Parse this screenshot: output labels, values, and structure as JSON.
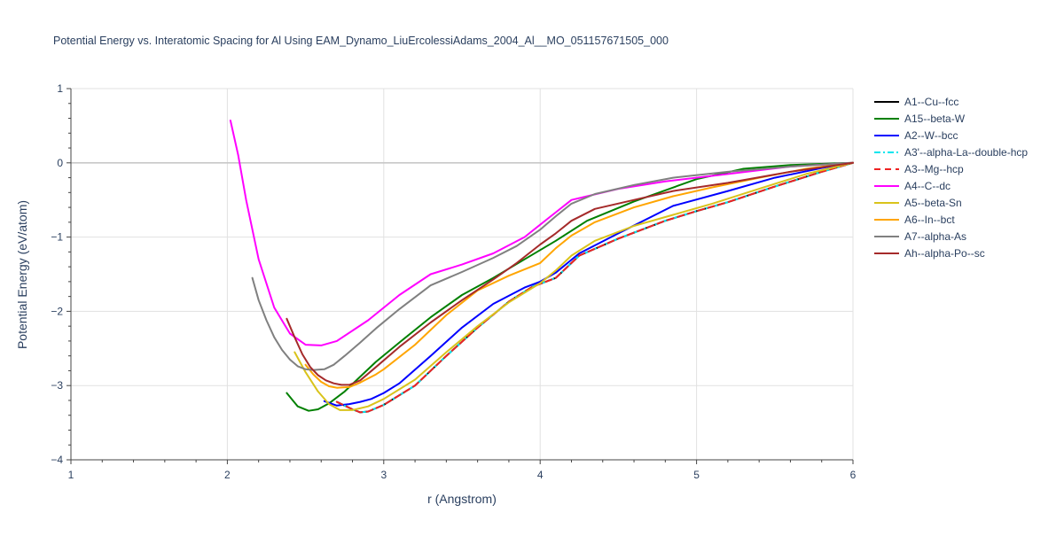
{
  "chart_data": {
    "type": "line",
    "title": "Potential Energy vs. Interatomic Spacing for Al Using EAM_Dynamo_LiuErcolessiAdams_2004_Al__MO_051157671505_000",
    "xlabel": "r (Angstrom)",
    "ylabel": "Potential Energy (eV/atom)",
    "xlim": [
      1,
      6
    ],
    "ylim": [
      -4,
      1
    ],
    "x_ticks": [
      "1",
      "2",
      "3",
      "4",
      "5",
      "6"
    ],
    "y_ticks": [
      "1",
      "0",
      "−1",
      "−2",
      "−3",
      "−4"
    ],
    "grid": true,
    "legend_position": "right",
    "series": [
      {
        "name": "A1--Cu--fcc",
        "color": "#000000",
        "dash": "solid",
        "x": [
          2.7,
          2.8,
          2.85,
          2.9,
          3.0,
          3.2,
          3.4,
          3.6,
          3.8,
          3.95,
          4.1,
          4.25,
          4.5,
          4.8,
          5.0,
          5.2,
          5.5,
          5.8,
          6.0
        ],
        "y": [
          -3.22,
          -3.32,
          -3.36,
          -3.35,
          -3.26,
          -3.0,
          -2.6,
          -2.22,
          -1.87,
          -1.67,
          -1.55,
          -1.25,
          -1.02,
          -0.78,
          -0.65,
          -0.53,
          -0.32,
          -0.12,
          0.0
        ]
      },
      {
        "name": "A15--beta-W",
        "color": "#008000",
        "dash": "solid",
        "x": [
          2.38,
          2.45,
          2.52,
          2.58,
          2.65,
          2.75,
          2.85,
          2.95,
          3.1,
          3.3,
          3.5,
          3.7,
          3.9,
          4.1,
          4.3,
          4.6,
          5.0,
          5.3,
          5.6,
          6.0
        ],
        "y": [
          -3.1,
          -3.28,
          -3.34,
          -3.32,
          -3.24,
          -3.08,
          -2.88,
          -2.68,
          -2.42,
          -2.08,
          -1.78,
          -1.55,
          -1.3,
          -1.05,
          -0.78,
          -0.52,
          -0.22,
          -0.08,
          -0.03,
          0.0
        ]
      },
      {
        "name": "A2--W--bcc",
        "color": "#0000ff",
        "dash": "solid",
        "x": [
          2.62,
          2.7,
          2.78,
          2.85,
          2.92,
          3.0,
          3.1,
          3.3,
          3.5,
          3.7,
          3.9,
          4.0,
          4.1,
          4.25,
          4.5,
          4.85,
          5.2,
          5.5,
          5.8,
          6.0
        ],
        "y": [
          -3.21,
          -3.27,
          -3.25,
          -3.22,
          -3.18,
          -3.1,
          -2.97,
          -2.6,
          -2.22,
          -1.9,
          -1.68,
          -1.6,
          -1.48,
          -1.22,
          -0.95,
          -0.58,
          -0.38,
          -0.2,
          -0.07,
          0.0
        ]
      },
      {
        "name": "A3'--alpha-La--double-hcp",
        "color": "#00e5ee",
        "dash": "dashdot",
        "x": [
          2.7,
          2.8,
          2.85,
          2.9,
          3.0,
          3.2,
          3.4,
          3.6,
          3.8,
          3.95,
          4.1,
          4.25,
          4.5,
          4.8,
          5.0,
          5.2,
          5.5,
          5.8,
          6.0
        ],
        "y": [
          -3.22,
          -3.32,
          -3.36,
          -3.35,
          -3.26,
          -3.0,
          -2.6,
          -2.22,
          -1.87,
          -1.67,
          -1.55,
          -1.25,
          -1.02,
          -0.78,
          -0.65,
          -0.53,
          -0.32,
          -0.12,
          0.0
        ]
      },
      {
        "name": "A3--Mg--hcp",
        "color": "#ee2222",
        "dash": "dash",
        "x": [
          2.7,
          2.8,
          2.85,
          2.9,
          3.0,
          3.2,
          3.4,
          3.6,
          3.8,
          3.95,
          4.1,
          4.25,
          4.5,
          4.8,
          5.0,
          5.2,
          5.5,
          5.8,
          6.0
        ],
        "y": [
          -3.22,
          -3.32,
          -3.36,
          -3.35,
          -3.26,
          -3.0,
          -2.6,
          -2.22,
          -1.87,
          -1.67,
          -1.55,
          -1.25,
          -1.02,
          -0.78,
          -0.65,
          -0.53,
          -0.32,
          -0.12,
          0.0
        ]
      },
      {
        "name": "A4--C--dc",
        "color": "#ff00ff",
        "dash": "solid",
        "x": [
          2.02,
          2.07,
          2.12,
          2.2,
          2.3,
          2.4,
          2.5,
          2.6,
          2.7,
          2.9,
          3.1,
          3.3,
          3.5,
          3.7,
          3.9,
          4.05,
          4.2,
          4.5,
          4.8,
          5.2,
          5.6,
          6.0
        ],
        "y": [
          0.57,
          0.1,
          -0.5,
          -1.3,
          -1.95,
          -2.3,
          -2.45,
          -2.46,
          -2.4,
          -2.12,
          -1.78,
          -1.5,
          -1.37,
          -1.22,
          -1.0,
          -0.75,
          -0.5,
          -0.35,
          -0.25,
          -0.15,
          -0.05,
          0.0
        ]
      },
      {
        "name": "A5--beta-Sn",
        "color": "#d9c31b",
        "dash": "solid",
        "x": [
          2.43,
          2.5,
          2.58,
          2.65,
          2.72,
          2.8,
          2.9,
          3.0,
          3.2,
          3.4,
          3.6,
          3.8,
          4.0,
          4.1,
          4.2,
          4.35,
          4.6,
          4.85,
          5.1,
          5.4,
          5.7,
          6.0
        ],
        "y": [
          -2.55,
          -2.82,
          -3.08,
          -3.25,
          -3.33,
          -3.33,
          -3.28,
          -3.18,
          -2.92,
          -2.55,
          -2.2,
          -1.88,
          -1.62,
          -1.45,
          -1.25,
          -1.05,
          -0.85,
          -0.7,
          -0.55,
          -0.35,
          -0.15,
          0.0
        ]
      },
      {
        "name": "A6--In--bct",
        "color": "#ffa500",
        "dash": "solid",
        "x": [
          2.5,
          2.55,
          2.6,
          2.65,
          2.7,
          2.78,
          2.85,
          2.95,
          3.0,
          3.2,
          3.4,
          3.6,
          3.8,
          4.0,
          4.1,
          4.2,
          4.35,
          4.6,
          4.85,
          5.1,
          5.4,
          5.7,
          6.0
        ],
        "y": [
          -2.72,
          -2.85,
          -2.95,
          -3.01,
          -3.03,
          -3.02,
          -2.96,
          -2.85,
          -2.78,
          -2.45,
          -2.05,
          -1.72,
          -1.52,
          -1.35,
          -1.15,
          -0.98,
          -0.8,
          -0.6,
          -0.45,
          -0.33,
          -0.2,
          -0.08,
          0.0
        ]
      },
      {
        "name": "A7--alpha-As",
        "color": "#808080",
        "dash": "solid",
        "x": [
          2.16,
          2.2,
          2.25,
          2.3,
          2.35,
          2.4,
          2.45,
          2.5,
          2.55,
          2.62,
          2.68,
          2.75,
          2.85,
          2.95,
          3.1,
          3.3,
          3.5,
          3.7,
          3.85,
          4.0,
          4.1,
          4.2,
          4.35,
          4.6,
          4.85,
          5.2,
          5.6,
          6.0
        ],
        "y": [
          -1.55,
          -1.85,
          -2.12,
          -2.35,
          -2.52,
          -2.65,
          -2.74,
          -2.78,
          -2.79,
          -2.78,
          -2.72,
          -2.6,
          -2.42,
          -2.23,
          -1.97,
          -1.65,
          -1.47,
          -1.28,
          -1.12,
          -0.9,
          -0.72,
          -0.55,
          -0.42,
          -0.3,
          -0.2,
          -0.12,
          -0.05,
          0.0
        ]
      },
      {
        "name": "Ah--alpha-Po--sc",
        "color": "#a52a2a",
        "dash": "solid",
        "x": [
          2.38,
          2.43,
          2.48,
          2.53,
          2.58,
          2.63,
          2.68,
          2.73,
          2.78,
          2.85,
          2.95,
          3.1,
          3.3,
          3.5,
          3.7,
          3.85,
          4.0,
          4.1,
          4.2,
          4.35,
          4.6,
          4.85,
          5.2,
          5.6,
          6.0
        ],
        "y": [
          -2.1,
          -2.35,
          -2.58,
          -2.75,
          -2.86,
          -2.93,
          -2.97,
          -2.99,
          -2.99,
          -2.93,
          -2.75,
          -2.48,
          -2.15,
          -1.85,
          -1.57,
          -1.35,
          -1.1,
          -0.95,
          -0.78,
          -0.62,
          -0.5,
          -0.38,
          -0.27,
          -0.12,
          0.0
        ]
      }
    ]
  }
}
